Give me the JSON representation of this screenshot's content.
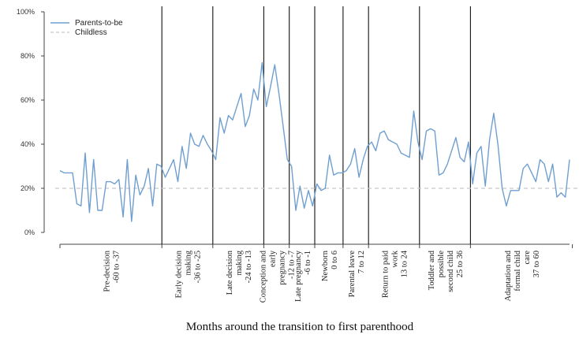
{
  "chart_data": {
    "type": "line",
    "title": "",
    "xlabel": "Months around the transition to first parenthood",
    "ylabel": "",
    "ylim": [
      0,
      100
    ],
    "yticks": [
      "0%",
      "20%",
      "40%",
      "60%",
      "80%",
      "100%"
    ],
    "grid": false,
    "legend_position": "top-left",
    "colors": {
      "parents": "#6f9fd0",
      "childless": "#c8c8c8",
      "axis": "#444444",
      "divider": "#111111"
    },
    "series": [
      {
        "name": "Parents-to-be",
        "style": "solid",
        "values": [
          28,
          27,
          27,
          27,
          13,
          12,
          36,
          9,
          33,
          10,
          10,
          23,
          23,
          22,
          24,
          7,
          33,
          5,
          26,
          17,
          21,
          29,
          12,
          31,
          30,
          25,
          29,
          33,
          23,
          39,
          29,
          45,
          40,
          39,
          44,
          40,
          37,
          33,
          52,
          45,
          53,
          51,
          57,
          63,
          48,
          53,
          65,
          60,
          77,
          57,
          66,
          76,
          63,
          48,
          33,
          30,
          10,
          21,
          11,
          19,
          12,
          22,
          19,
          20,
          35,
          26,
          27,
          27,
          28,
          31,
          38,
          25,
          33,
          39,
          41,
          37,
          45,
          46,
          42,
          41,
          40,
          36,
          35,
          34,
          55,
          41,
          33,
          46,
          47,
          46,
          26,
          27,
          31,
          37,
          43,
          34,
          32,
          41,
          22,
          36,
          39,
          21,
          42,
          54,
          40,
          20,
          12,
          19,
          19,
          19,
          29,
          31,
          27,
          23,
          33,
          31,
          23,
          31,
          16,
          18,
          16,
          33
        ]
      },
      {
        "name": "Childless",
        "style": "dashed",
        "value": 20
      }
    ],
    "periods": [
      {
        "label": "Pre-decision",
        "range": "-60 to -37",
        "start": 0,
        "end": 36
      },
      {
        "label": "Early decision making",
        "range": "-36 to -25",
        "start": 36,
        "end": 54
      },
      {
        "label": "Late decision making",
        "range": "-24 to -13",
        "start": 54,
        "end": 72
      },
      {
        "label": "Conception and early pregnancy",
        "range": "-12 to -7",
        "start": 72,
        "end": 81
      },
      {
        "label": "Late pregnancy",
        "range": "-6 to -1",
        "start": 81,
        "end": 90
      },
      {
        "label": "Newborn",
        "range": "0 to 6",
        "start": 90,
        "end": 100
      },
      {
        "label": "Parental leave",
        "range": "7 to 12",
        "start": 100,
        "end": 109
      },
      {
        "label": "Return to paid work",
        "range": "13 to 24",
        "start": 109,
        "end": 127
      },
      {
        "label": "Toddler and possible second child",
        "range": "25 to 36",
        "start": 127,
        "end": 145
      },
      {
        "label": "Adaptation and formal child care",
        "range": "37 to 60",
        "start": 145,
        "end": 181
      }
    ]
  },
  "legend": {
    "parents_label": "Parents-to-be",
    "childless_label": "Childless"
  }
}
